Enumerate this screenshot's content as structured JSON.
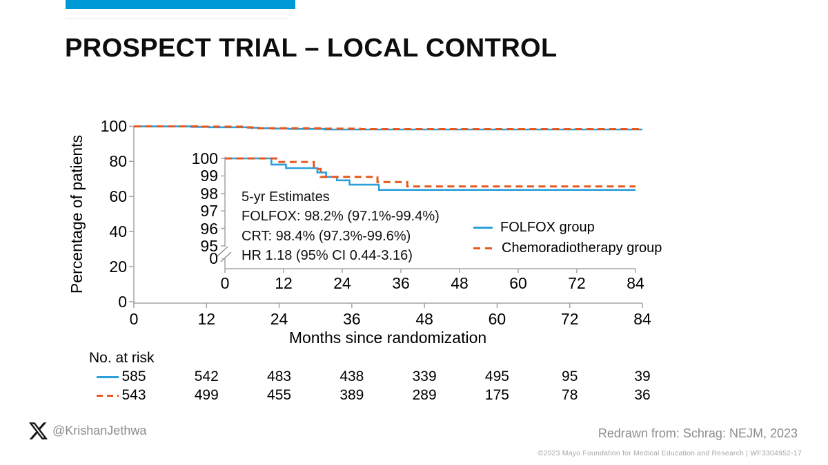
{
  "slide": {
    "title": "PROSPECT TRIAL – LOCAL CONTROL",
    "accent_color": "#0099d8",
    "footer": {
      "handle": "@KrishanJethwa",
      "credit": "Redrawn from: Schrag: NEJM, 2023",
      "copyright": "©2023 Mayo Foundation for Medical Education and Research  |  WF3304952-17"
    }
  },
  "chart_data": {
    "type": "line",
    "subtype": "kaplan-meier-step",
    "title": "",
    "xlabel": "Months since randomization",
    "ylabel": "Percentage of patients",
    "main_axis": {
      "x_ticks": [
        0,
        12,
        24,
        36,
        48,
        60,
        72,
        84
      ],
      "y_ticks": [
        0,
        20,
        40,
        60,
        80,
        100
      ],
      "xlim": [
        0,
        84
      ],
      "ylim": [
        0,
        100
      ],
      "grid": false
    },
    "inset_axis": {
      "x_ticks": [
        0,
        12,
        24,
        36,
        48,
        60,
        72,
        84
      ],
      "y_ticks": [
        100,
        99,
        98,
        97,
        96,
        95
      ],
      "zero_label": "0",
      "axis_break": true,
      "ylim_zoom": [
        95,
        100
      ]
    },
    "series": [
      {
        "name": "FOLFOX group",
        "color": "#2b9fd9",
        "style": "solid",
        "points": [
          [
            0,
            100
          ],
          [
            9.5,
            100
          ],
          [
            9.5,
            99.65
          ],
          [
            12.5,
            99.65
          ],
          [
            12.5,
            99.45
          ],
          [
            18.9,
            99.45
          ],
          [
            18.9,
            99.2
          ],
          [
            20.7,
            99.2
          ],
          [
            20.7,
            98.95
          ],
          [
            22.9,
            98.95
          ],
          [
            22.9,
            98.75
          ],
          [
            25.5,
            98.75
          ],
          [
            25.5,
            98.5
          ],
          [
            31.5,
            98.5
          ],
          [
            31.5,
            98.2
          ],
          [
            84,
            98.2
          ]
        ]
      },
      {
        "name": "Chemoradiotherapy group",
        "color": "#e8571c",
        "style": "dashed",
        "points": [
          [
            0,
            100
          ],
          [
            10.5,
            100
          ],
          [
            10.5,
            99.8
          ],
          [
            18.2,
            99.8
          ],
          [
            18.2,
            99.4
          ],
          [
            19.6,
            99.4
          ],
          [
            19.6,
            98.95
          ],
          [
            31.2,
            98.95
          ],
          [
            31.2,
            98.65
          ],
          [
            37.3,
            98.65
          ],
          [
            37.3,
            98.4
          ],
          [
            84,
            98.4
          ]
        ]
      }
    ],
    "annotation": {
      "lines": [
        "5-yr Estimates",
        "FOLFOX: 98.2% (97.1%-99.4%)",
        "CRT: 98.4% (97.3%-99.6%)",
        "HR 1.18 (95% CI 0.44-3.16)"
      ]
    },
    "risk_table": {
      "label": "No. at risk",
      "rows": [
        {
          "series": "FOLFOX group",
          "values": [
            585,
            542,
            483,
            438,
            339,
            495,
            95,
            39
          ]
        },
        {
          "series": "Chemoradiotherapy group",
          "values": [
            543,
            499,
            455,
            389,
            289,
            175,
            78,
            36
          ]
        }
      ]
    }
  }
}
